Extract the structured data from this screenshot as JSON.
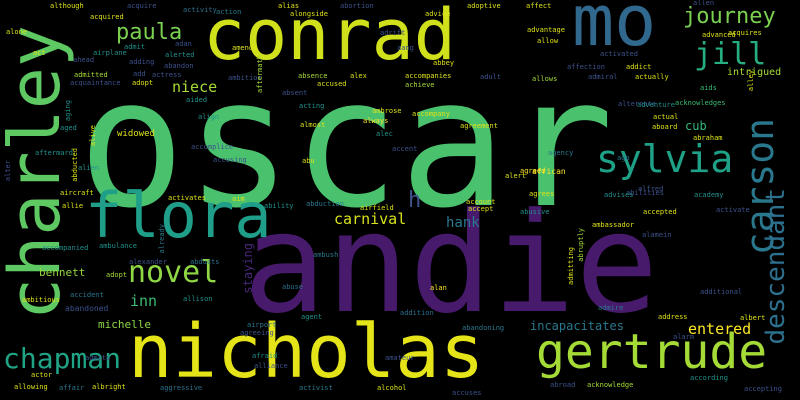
{
  "background": "#000000",
  "palette": [
    "#440154",
    "#3b528b",
    "#21918c",
    "#5ec962",
    "#fde725"
  ],
  "words": [
    "oscar",
    "andie",
    "nicholas",
    "conrad",
    "charley",
    "mo",
    "flora",
    "gertrude",
    "sylvia",
    "carson",
    "descendant",
    "chapman",
    "novel",
    "jill",
    "journey",
    "paula",
    "niece",
    "inn",
    "carnival",
    "entered",
    "bennett",
    "michelle",
    "h",
    "hank",
    "cub",
    "intrigued",
    "incapacitates",
    "staying",
    "widowed",
    "african",
    "abandoned",
    "accident",
    "airport",
    "ambush",
    "alcohol",
    "aggressive",
    "activist",
    "acknowledge",
    "accepting",
    "according",
    "albert",
    "address",
    "additional",
    "abducts",
    "adopt",
    "alexander",
    "allison",
    "alan",
    "abuse",
    "abilities",
    "ambassador",
    "accepted",
    "actual",
    "aboard",
    "abraham",
    "acquires",
    "allen",
    "advanced",
    "advice",
    "abortion",
    "alias",
    "alongside",
    "adoptive",
    "acquired",
    "acquire",
    "activity",
    "action",
    "although",
    "abbey",
    "adult",
    "allows",
    "admiral",
    "actually",
    "agreed",
    "agreement",
    "accompany",
    "ambrose",
    "alec",
    "always",
    "absence",
    "acting",
    "alex",
    "almost",
    "achieve",
    "accompanies",
    "accused",
    "abu",
    "accusing",
    "accomplice",
    "ability",
    "abduction",
    "aim",
    "activates",
    "aircraft",
    "allie",
    "aged",
    "adopt",
    "aided",
    "align",
    "acquaintance",
    "admitted",
    "ahead",
    "airplane",
    "adan",
    "admit",
    "amends",
    "add",
    "actress",
    "adding",
    "alerted",
    "abandon",
    "ambition",
    "absent",
    "accent",
    "act",
    "alone",
    "affect",
    "affection",
    "addict",
    "alternate",
    "adventure",
    "account",
    "accept",
    "airfield",
    "abusive",
    "agrees",
    "advises",
    "alfred",
    "academy",
    "activate",
    "alarm",
    "afraid",
    "alliance",
    "agent",
    "admits",
    "actor",
    "allowing",
    "affair",
    "albright",
    "abroad",
    "alien",
    "aftermath",
    "alter",
    "alive",
    "abducted",
    "agreeing",
    "addition",
    "abandoning",
    "alert",
    "alamein",
    "admitting",
    "abruptly",
    "alley",
    "acknowledges",
    "aids",
    "aftermard",
    "aging",
    "ambitious",
    "ambulance",
    "accompanied",
    "allow",
    "advantage",
    "activated",
    "aang",
    "adrift",
    "already",
    "agency",
    "admire",
    "amateur",
    "ago",
    "accuses",
    "acres"
  ]
}
